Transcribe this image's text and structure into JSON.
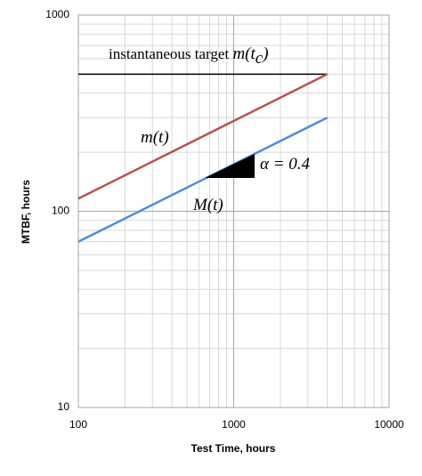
{
  "chart_data": {
    "type": "line",
    "xlabel": "Test Time, hours",
    "ylabel": "MTBF, hours",
    "x": [
      100,
      4000
    ],
    "series": [
      {
        "color": "#000000",
        "values": [
          500,
          500
        ]
      },
      {
        "color": "#c0504d",
        "values": [
          116,
          500
        ]
      },
      {
        "color": "#4a8fd9",
        "values": [
          70,
          300
        ]
      }
    ],
    "xlim": [
      100,
      10000
    ],
    "ylim": [
      10,
      1000
    ],
    "xticks": [
      100,
      1000,
      10000
    ],
    "yticks": [
      10,
      100,
      1000
    ],
    "xscale": "log",
    "yscale": "log",
    "grid": true,
    "minor_grid": true,
    "annotations": [
      {
        "text": "instantaneous target ",
        "math": "m(t",
        "sub": "c",
        "tail": ")"
      },
      {
        "math": "m(t)"
      },
      {
        "math": "M(t)"
      },
      {
        "math": "α = 0.4"
      }
    ]
  }
}
